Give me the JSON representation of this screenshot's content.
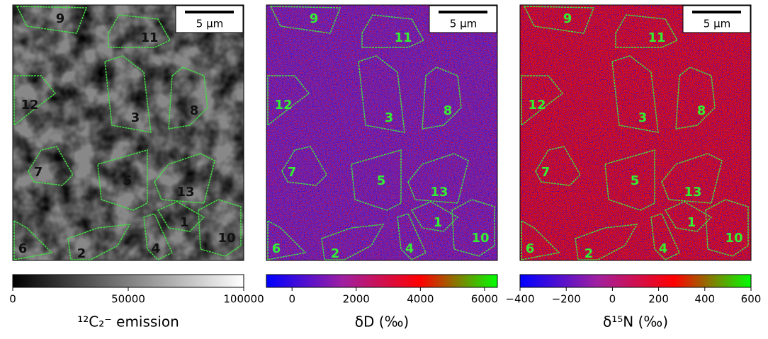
{
  "panels": [
    {
      "scale_bar": "5 μm",
      "regions": [
        "9",
        "11",
        "12",
        "3",
        "8",
        "7",
        "5",
        "13",
        "1",
        "10",
        "6",
        "2",
        "4"
      ],
      "colorbar": {
        "label": "¹²C₂⁻ emission",
        "xlim": [
          0,
          100000
        ],
        "xticks": [
          0,
          50000,
          100000
        ],
        "colors": [
          "#000000",
          "#ffffff"
        ]
      }
    },
    {
      "scale_bar": "5 μm",
      "regions": [
        "9",
        "11",
        "12",
        "3",
        "8",
        "7",
        "5",
        "13",
        "1",
        "10",
        "6",
        "2",
        "4"
      ],
      "colorbar": {
        "label": "δD (‰)",
        "xlim": [
          -800,
          6400
        ],
        "xticks": [
          0,
          2000,
          4000,
          6000
        ],
        "colors": [
          "#0000ff",
          "#a020a0",
          "#ff0000",
          "#00ff00"
        ]
      }
    },
    {
      "scale_bar": "5 μm",
      "regions": [
        "9",
        "11",
        "12",
        "3",
        "8",
        "7",
        "5",
        "13",
        "1",
        "10",
        "6",
        "2",
        "4"
      ],
      "colorbar": {
        "label": "δ¹⁵N (‰)",
        "xlim": [
          -400,
          600
        ],
        "xticks": [
          {
            "value": -400,
            "label": "−400"
          },
          {
            "value": -200,
            "label": "−200"
          },
          0,
          200,
          400,
          600
        ],
        "colors": [
          "#0000ff",
          "#a020a0",
          "#ff0000",
          "#00ff00"
        ]
      }
    }
  ]
}
